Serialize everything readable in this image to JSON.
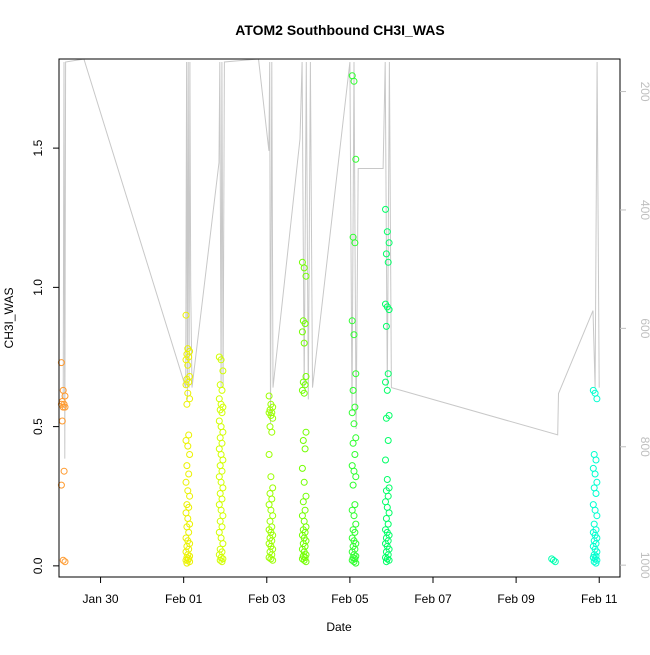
{
  "chart_data": {
    "type": "scatter",
    "title": "ATOM2 Southbound CH3I_WAS",
    "xlabel": "Date",
    "ylabel": "CH3I_WAS",
    "x_ticks": [
      "Jan 30",
      "Feb 01",
      "Feb 03",
      "Feb 05",
      "Feb 07",
      "Feb 09",
      "Feb 11"
    ],
    "y_ticks": [
      "0.0",
      "0.5",
      "1.0",
      "1.5"
    ],
    "y2_ticks": [
      "200",
      "400",
      "600",
      "800",
      "1000"
    ],
    "xlim": [
      "2017-01-29.0",
      "2017-02-11.5"
    ],
    "ylim": [
      -0.04,
      1.82
    ],
    "y2lim": [
      145,
      1020
    ],
    "secondary_axis_reversed": true,
    "grid": false,
    "colors": {
      "pressure_line": "#c8c8c8",
      "axis": "#000000",
      "secondary_axis": "#bfbfbf"
    },
    "flights": [
      {
        "date": "2017-01-29.1",
        "color": "#ff9a2e",
        "values": [
          0.73,
          0.63,
          0.61,
          0.59,
          0.58,
          0.58,
          0.57,
          0.57,
          0.52,
          0.34,
          0.29,
          0.02,
          0.015
        ]
      },
      {
        "date": "2017-02-01.1",
        "color": "#ebf200",
        "values": [
          0.9,
          0.78,
          0.77,
          0.76,
          0.75,
          0.74,
          0.72,
          0.68,
          0.67,
          0.66,
          0.65,
          0.62,
          0.6,
          0.58,
          0.47,
          0.45,
          0.43,
          0.4,
          0.36,
          0.33,
          0.3,
          0.27,
          0.25,
          0.22,
          0.21,
          0.19,
          0.17,
          0.15,
          0.14,
          0.12,
          0.1,
          0.09,
          0.08,
          0.07,
          0.06,
          0.05,
          0.04,
          0.035,
          0.03,
          0.025,
          0.02,
          0.02,
          0.015,
          0.01
        ]
      },
      {
        "date": "2017-02-01.9",
        "color": "#d2ff00",
        "values": [
          0.75,
          0.74,
          0.7,
          0.65,
          0.63,
          0.6,
          0.58,
          0.57,
          0.56,
          0.55,
          0.52,
          0.5,
          0.48,
          0.46,
          0.44,
          0.42,
          0.4,
          0.38,
          0.36,
          0.34,
          0.32,
          0.3,
          0.28,
          0.26,
          0.24,
          0.22,
          0.2,
          0.18,
          0.16,
          0.14,
          0.12,
          0.1,
          0.08,
          0.06,
          0.05,
          0.04,
          0.03,
          0.025,
          0.02,
          0.015
        ]
      },
      {
        "date": "2017-02-03.1",
        "color": "#9cff00",
        "values": [
          0.61,
          0.58,
          0.57,
          0.56,
          0.55,
          0.55,
          0.54,
          0.53,
          0.5,
          0.48,
          0.4,
          0.32,
          0.28,
          0.26,
          0.24,
          0.22,
          0.2,
          0.18,
          0.16,
          0.14,
          0.13,
          0.12,
          0.11,
          0.1,
          0.09,
          0.08,
          0.07,
          0.06,
          0.05,
          0.04,
          0.03,
          0.025,
          0.02
        ]
      },
      {
        "date": "2017-02-03.9",
        "color": "#72ff00",
        "values": [
          1.09,
          1.07,
          1.04,
          0.88,
          0.87,
          0.84,
          0.8,
          0.68,
          0.66,
          0.65,
          0.63,
          0.62,
          0.48,
          0.45,
          0.42,
          0.35,
          0.3,
          0.25,
          0.23,
          0.2,
          0.18,
          0.16,
          0.14,
          0.13,
          0.12,
          0.11,
          0.1,
          0.09,
          0.08,
          0.07,
          0.06,
          0.05,
          0.04,
          0.035,
          0.03,
          0.025,
          0.02,
          0.015
        ]
      },
      {
        "date": "2017-02-05.1",
        "color": "#2cff2c",
        "values": [
          1.76,
          1.74,
          1.46,
          1.18,
          1.16,
          0.88,
          0.83,
          0.69,
          0.63,
          0.57,
          0.55,
          0.51,
          0.46,
          0.44,
          0.4,
          0.36,
          0.34,
          0.32,
          0.29,
          0.22,
          0.2,
          0.18,
          0.15,
          0.13,
          0.12,
          0.1,
          0.09,
          0.08,
          0.07,
          0.06,
          0.05,
          0.04,
          0.035,
          0.03,
          0.025,
          0.02,
          0.015,
          0.01
        ]
      },
      {
        "date": "2017-02-05.9",
        "color": "#00ff66",
        "values": [
          1.28,
          1.2,
          1.16,
          1.12,
          1.09,
          0.94,
          0.93,
          0.92,
          0.86,
          0.69,
          0.66,
          0.63,
          0.54,
          0.53,
          0.45,
          0.38,
          0.31,
          0.28,
          0.27,
          0.25,
          0.23,
          0.21,
          0.19,
          0.17,
          0.15,
          0.13,
          0.12,
          0.11,
          0.1,
          0.09,
          0.08,
          0.07,
          0.06,
          0.05,
          0.04,
          0.03,
          0.025,
          0.02,
          0.015
        ]
      },
      {
        "date": "2017-02-09.9",
        "color": "#00ffb0",
        "values": [
          0.025,
          0.02,
          0.015
        ]
      },
      {
        "date": "2017-02-10.9",
        "color": "#00ffd0",
        "values": [
          0.63,
          0.62,
          0.6,
          0.4,
          0.38,
          0.35,
          0.33,
          0.3,
          0.28,
          0.26,
          0.22,
          0.2,
          0.18,
          0.15,
          0.13,
          0.12,
          0.11,
          0.1,
          0.09,
          0.08,
          0.07,
          0.06,
          0.05,
          0.04,
          0.035,
          0.03,
          0.025,
          0.02,
          0.015,
          0.01
        ]
      }
    ],
    "pressure_trace": {
      "note": "right axis, hPa; traced altitude profile",
      "points": [
        [
          "2017-01-29.10",
          720
        ],
        [
          "2017-01-29.12",
          150
        ],
        [
          "2017-01-29.14",
          820
        ],
        [
          "2017-01-29.16",
          150
        ],
        [
          "2017-01-29.6",
          145
        ],
        [
          "2017-02-01.05",
          700
        ],
        [
          "2017-02-01.07",
          150
        ],
        [
          "2017-02-01.09",
          720
        ],
        [
          "2017-02-01.11",
          150
        ],
        [
          "2017-02-01.13",
          700
        ],
        [
          "2017-02-01.15",
          150
        ],
        [
          "2017-02-01.17",
          530
        ],
        [
          "2017-02-01.2",
          700
        ],
        [
          "2017-02-01.85",
          320
        ],
        [
          "2017-02-01.87",
          150
        ],
        [
          "2017-02-01.90",
          700
        ],
        [
          "2017-02-01.92",
          150
        ],
        [
          "2017-02-01.95",
          700
        ],
        [
          "2017-02-01.98",
          150
        ],
        [
          "2017-02-02.8",
          145
        ],
        [
          "2017-02-03.05",
          300
        ],
        [
          "2017-02-03.07",
          150
        ],
        [
          "2017-02-03.09",
          760
        ],
        [
          "2017-02-03.12",
          150
        ],
        [
          "2017-02-03.15",
          700
        ],
        [
          "2017-02-03.8",
          280
        ],
        [
          "2017-02-03.85",
          150
        ],
        [
          "2017-02-03.90",
          700
        ],
        [
          "2017-02-03.95",
          150
        ],
        [
          "2017-02-04.00",
          720
        ],
        [
          "2017-02-04.05",
          150
        ],
        [
          "2017-02-04.10",
          700
        ],
        [
          "2017-02-05.00",
          150
        ],
        [
          "2017-02-05.05",
          740
        ],
        [
          "2017-02-05.10",
          150
        ],
        [
          "2017-02-05.15",
          770
        ],
        [
          "2017-02-05.20",
          330
        ],
        [
          "2017-02-05.8",
          330
        ],
        [
          "2017-02-05.85",
          150
        ],
        [
          "2017-02-05.90",
          700
        ],
        [
          "2017-02-05.95",
          150
        ],
        [
          "2017-02-06.00",
          700
        ],
        [
          "2017-02-10.0",
          780
        ],
        [
          "2017-02-10.02",
          710
        ],
        [
          "2017-02-10.85",
          570
        ],
        [
          "2017-02-10.9",
          700
        ],
        [
          "2017-02-10.95",
          150
        ],
        [
          "2017-02-11.00",
          700
        ]
      ]
    }
  }
}
